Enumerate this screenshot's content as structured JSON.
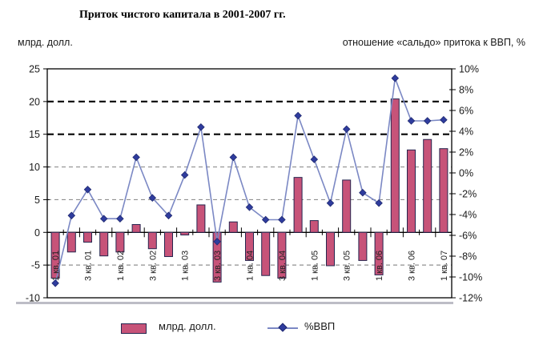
{
  "header": {
    "title": "Приток чистого капитала в 2001-2007 гг.",
    "left_caption": "млрд. долл.",
    "right_caption": "отношение «сальдо» притока к ВВП, %"
  },
  "legend": {
    "bars_label": "млрд. долл.",
    "line_label": "%ВВП"
  },
  "colors": {
    "bar_fill": "#c75379",
    "bar_border": "#26264f",
    "line": "#7b88c4",
    "marker": "#2f3c9e",
    "grid_light": "#909090",
    "grid_bold": "#111111",
    "axis": "#000000",
    "text": "#1a1a1a"
  },
  "chart_data": {
    "type": "bar",
    "title": "Приток чистого капитала в 2001-2007 гг.",
    "categories": [
      "1 кв. 01",
      "",
      "3 кв. 01",
      "",
      "1 кв. 02",
      "",
      "3 кв. 02",
      "",
      "1 кв. 03",
      "",
      "3 кв. 03",
      "",
      "1 кв. 04",
      "",
      "3 кв. 04",
      "",
      "1 кв. 05",
      "",
      "3 кв. 05",
      "",
      "1 кв. 06",
      "",
      "3 кв. 06",
      "",
      "1 кв. 07"
    ],
    "series": [
      {
        "name": "млрд. долл.",
        "type": "bar",
        "axis": "left",
        "values": [
          -7.0,
          -3.0,
          -1.5,
          -3.6,
          -3.0,
          1.2,
          -2.5,
          -3.7,
          -0.4,
          4.2,
          -7.6,
          1.6,
          -4.3,
          -6.6,
          -7.0,
          8.4,
          1.8,
          -5.1,
          8.0,
          -4.3,
          -6.5,
          20.4,
          12.6,
          14.2,
          12.8
        ]
      },
      {
        "name": "%ВВП",
        "type": "line",
        "axis": "right",
        "values": [
          -10.6,
          -4.1,
          -1.6,
          -4.4,
          -4.4,
          1.5,
          -2.4,
          -4.1,
          -0.2,
          4.4,
          -6.6,
          1.5,
          -3.3,
          -4.5,
          -4.5,
          5.5,
          1.3,
          -2.9,
          4.2,
          -1.9,
          -2.9,
          9.1,
          5.0,
          5.0,
          5.1
        ]
      }
    ],
    "left_axis": {
      "caption": "млрд. долл.",
      "min": -10,
      "max": 25,
      "tick_step": 5,
      "tick_labels": [
        "25",
        "20",
        "15",
        "10",
        "5",
        "0",
        "-5",
        "-10"
      ]
    },
    "right_axis": {
      "caption": "отношение «сальдо» притока к ВВП, %",
      "min": -12,
      "max": 10,
      "tick_step": 2,
      "tick_labels": [
        "10%",
        "8%",
        "6%",
        "4%",
        "2%",
        "0%",
        "-2%",
        "-4%",
        "-6%",
        "-8%",
        "-10%",
        "-12%"
      ]
    },
    "grid": {
      "bold_left_values": [
        20,
        15
      ],
      "light_left_values": [
        10,
        5,
        -5
      ]
    },
    "legend_position": "bottom"
  }
}
